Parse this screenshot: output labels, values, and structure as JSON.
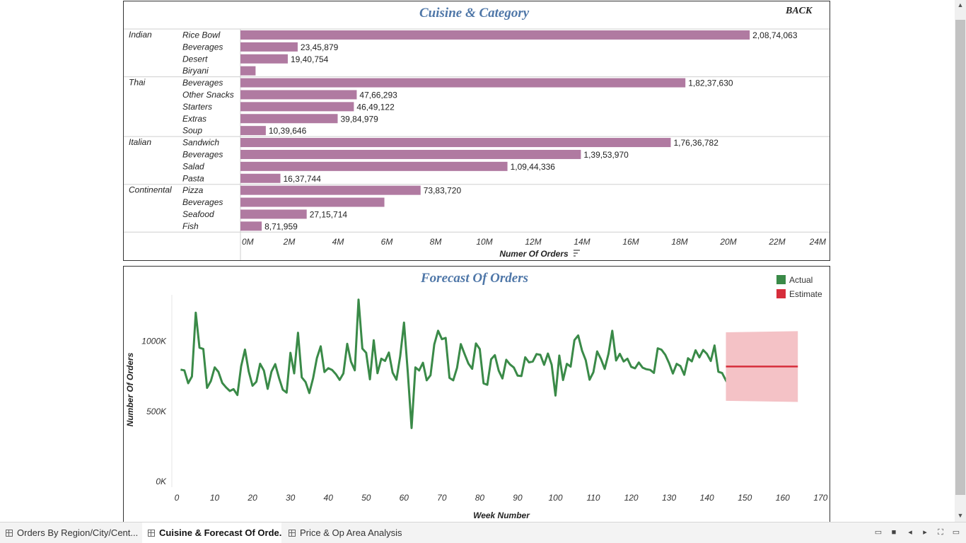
{
  "cuisine_panel": {
    "title": "Cuisine & Category",
    "back_label": "BACK"
  },
  "forecast_panel": {
    "title": "Forecast Of Orders"
  },
  "tabs": [
    {
      "label": "Orders By Region/City/Cent..."
    },
    {
      "label": "Cuisine & Forecast Of Orde..."
    },
    {
      "label": "Price & Op Area Analysis"
    }
  ],
  "colors": {
    "bar": "#b07aa1",
    "actual": "#3a8a48",
    "estimate": "#d62d3b",
    "band": "#f4c2c6",
    "title": "#4f77a8"
  },
  "chart_data": [
    {
      "type": "bar",
      "orientation": "horizontal",
      "title": "Cuisine & Category",
      "xlabel": "Numer Of Orders",
      "xlim": [
        0,
        24000000
      ],
      "xticks": [
        0,
        2000000,
        4000000,
        6000000,
        8000000,
        10000000,
        12000000,
        14000000,
        16000000,
        18000000,
        20000000,
        22000000,
        24000000
      ],
      "xtick_labels": [
        "0M",
        "2M",
        "4M",
        "6M",
        "8M",
        "10M",
        "12M",
        "14M",
        "16M",
        "18M",
        "20M",
        "22M",
        "24M"
      ],
      "groups": [
        {
          "cuisine": "Indian",
          "items": [
            {
              "category": "Rice Bowl",
              "value": 20874063,
              "label": "2,08,74,063"
            },
            {
              "category": "Beverages",
              "value": 2345879,
              "label": "23,45,879"
            },
            {
              "category": "Desert",
              "value": 1940754,
              "label": "19,40,754"
            },
            {
              "category": "Biryani",
              "value": 620000,
              "label": ""
            }
          ]
        },
        {
          "cuisine": "Thai",
          "items": [
            {
              "category": "Beverages",
              "value": 18237630,
              "label": "1,82,37,630"
            },
            {
              "category": "Other Snacks",
              "value": 4766293,
              "label": "47,66,293"
            },
            {
              "category": "Starters",
              "value": 4649122,
              "label": "46,49,122"
            },
            {
              "category": "Extras",
              "value": 3984979,
              "label": "39,84,979"
            },
            {
              "category": "Soup",
              "value": 1039646,
              "label": "10,39,646"
            }
          ]
        },
        {
          "cuisine": "Italian",
          "items": [
            {
              "category": "Sandwich",
              "value": 17636782,
              "label": "1,76,36,782"
            },
            {
              "category": "Beverages",
              "value": 13953970,
              "label": "1,39,53,970"
            },
            {
              "category": "Salad",
              "value": 10944336,
              "label": "1,09,44,336"
            },
            {
              "category": "Pasta",
              "value": 1637744,
              "label": "16,37,744"
            }
          ]
        },
        {
          "cuisine": "Continental",
          "items": [
            {
              "category": "Pizza",
              "value": 7383720,
              "label": "73,83,720"
            },
            {
              "category": "Beverages",
              "value": 5900000,
              "label": ""
            },
            {
              "category": "Seafood",
              "value": 2715714,
              "label": "27,15,714"
            },
            {
              "category": "Fish",
              "value": 871959,
              "label": "8,71,959"
            }
          ]
        }
      ]
    },
    {
      "type": "line",
      "title": "Forecast Of Orders",
      "xlabel": "Week Number",
      "ylabel": "Number Of Orders",
      "xlim": [
        0,
        170
      ],
      "ylim": [
        0,
        1350000
      ],
      "xticks": [
        0,
        10,
        20,
        30,
        40,
        50,
        60,
        70,
        80,
        90,
        100,
        110,
        120,
        130,
        140,
        150,
        160,
        170
      ],
      "yticks": [
        0,
        500000,
        1000000
      ],
      "ytick_labels": [
        "0K",
        "500K",
        "1000K"
      ],
      "legend": [
        "Actual",
        "Estimate"
      ],
      "legend_position": "top-right",
      "series": [
        {
          "name": "Actual",
          "x_start": 1,
          "values": [
            792000,
            787000,
            695000,
            743000,
            1198000,
            948000,
            939000,
            662000,
            711000,
            808000,
            776000,
            697000,
            666000,
            640000,
            653000,
            611000,
            816000,
            935000,
            779000,
            677000,
            706000,
            834000,
            785000,
            655000,
            778000,
            831000,
            732000,
            649000,
            628000,
            912000,
            765000,
            1055000,
            737000,
            704000,
            625000,
            732000,
            874000,
            958000,
            775000,
            802000,
            790000,
            760000,
            719000,
            765000,
            976000,
            849000,
            787000,
            1291000,
            942000,
            912000,
            723000,
            1001000,
            766000,
            870000,
            854000,
            914000,
            771000,
            720000,
            887000,
            1127000,
            770000,
            376000,
            808000,
            786000,
            841000,
            716000,
            752000,
            972000,
            1069000,
            1009000,
            1018000,
            733000,
            716000,
            805000,
            974000,
            903000,
            836000,
            798000,
            979000,
            939000,
            694000,
            684000,
            866000,
            895000,
            785000,
            729000,
            862000,
            829000,
            807000,
            749000,
            746000,
            880000,
            844000,
            850000,
            903000,
            897000,
            826000,
            907000,
            827000,
            607000,
            892000,
            718000,
            833000,
            813000,
            1002000,
            1036000,
            928000,
            859000,
            720000,
            774000,
            922000,
            867000,
            797000,
            906000,
            1069000,
            857000,
            905000,
            850000,
            870000,
            812000,
            801000,
            843000,
            806000,
            795000,
            790000,
            769000,
            944000,
            934000,
            897000,
            838000,
            764000,
            833000,
            817000,
            755000,
            873000,
            851000,
            930000,
            879000,
            932000,
            904000,
            854000,
            964000,
            777000,
            768000,
            715000,
            672000,
            753000,
            794000,
            777000,
            749000,
            766000,
            800000
          ]
        },
        {
          "name": "Estimate",
          "x_start": 145,
          "x_end": 164,
          "values": [
            814000,
            814000
          ],
          "band_upper": [
            1058000,
            1066000
          ],
          "band_lower": [
            570000,
            562000
          ]
        }
      ]
    }
  ]
}
